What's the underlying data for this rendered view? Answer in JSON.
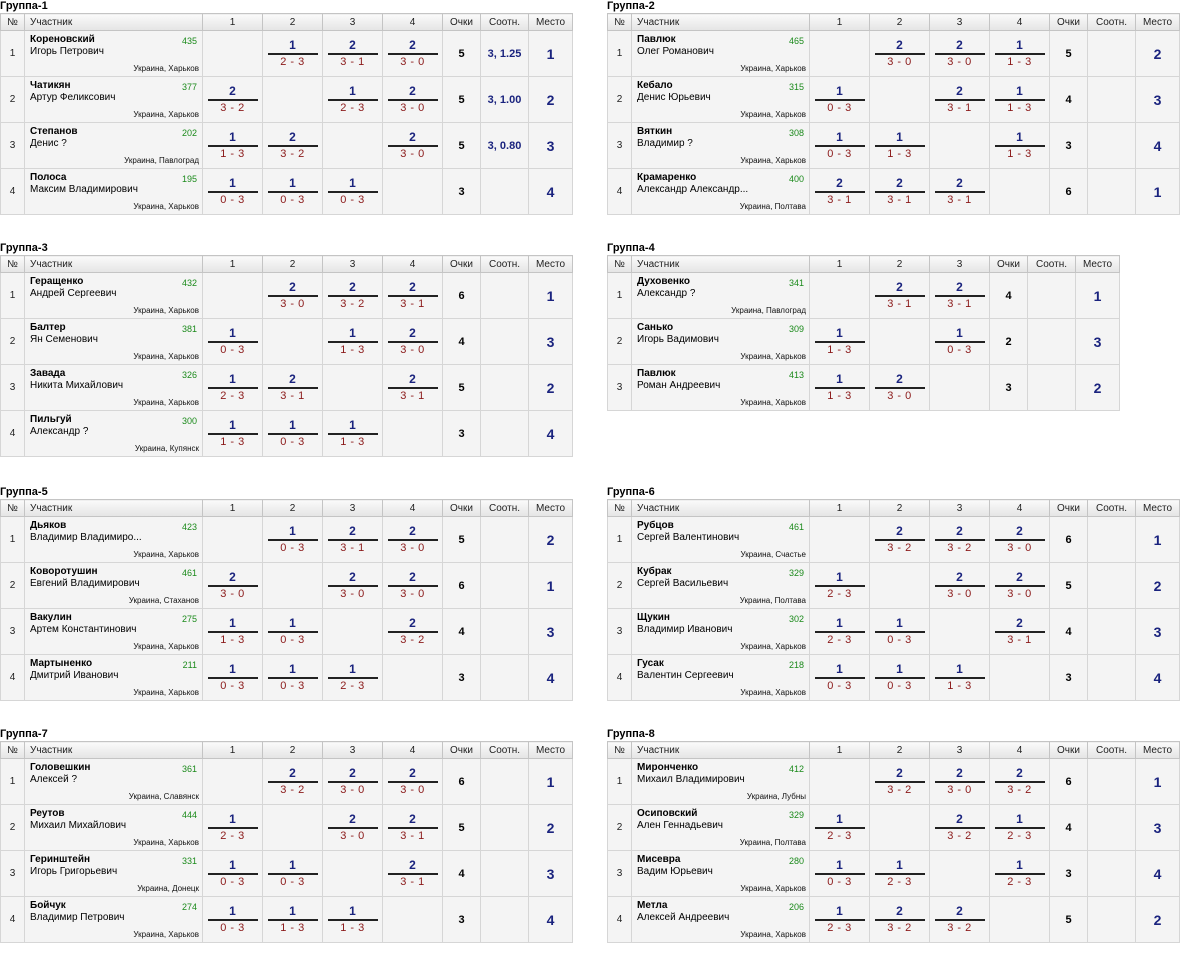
{
  "headers": {
    "num": "№",
    "player": "Участник",
    "points": "Очки",
    "ratio": "Соотн.",
    "place": "Место"
  },
  "groups": [
    {
      "title": "Группа-1",
      "players": [
        {
          "surname": "Кореновский",
          "first": "Игорь Петрович",
          "rating": "435",
          "location": "Украина, Харьков",
          "results": [
            null,
            {
              "p": "1",
              "s": "2 - 3"
            },
            {
              "p": "2",
              "s": "3 - 1"
            },
            {
              "p": "2",
              "s": "3 - 0"
            }
          ],
          "points": "5",
          "ratio": "3, 1.25",
          "place": "1"
        },
        {
          "surname": "Чатикян",
          "first": "Артур Феликсович",
          "rating": "377",
          "location": "Украина, Харьков",
          "results": [
            {
              "p": "2",
              "s": "3 - 2"
            },
            null,
            {
              "p": "1",
              "s": "2 - 3"
            },
            {
              "p": "2",
              "s": "3 - 0"
            }
          ],
          "points": "5",
          "ratio": "3, 1.00",
          "place": "2"
        },
        {
          "surname": "Степанов",
          "first": "Денис ?",
          "rating": "202",
          "location": "Украина, Павлоград",
          "results": [
            {
              "p": "1",
              "s": "1 - 3"
            },
            {
              "p": "2",
              "s": "3 - 2"
            },
            null,
            {
              "p": "2",
              "s": "3 - 0"
            }
          ],
          "points": "5",
          "ratio": "3, 0.80",
          "place": "3"
        },
        {
          "surname": "Полоса",
          "first": "Максим Владимирович",
          "rating": "195",
          "location": "Украина, Харьков",
          "results": [
            {
              "p": "1",
              "s": "0 - 3"
            },
            {
              "p": "1",
              "s": "0 - 3"
            },
            {
              "p": "1",
              "s": "0 - 3"
            },
            null
          ],
          "points": "3",
          "ratio": "",
          "place": "4"
        }
      ]
    },
    {
      "title": "Группа-2",
      "players": [
        {
          "surname": "Павлюк",
          "first": "Олег Романович",
          "rating": "465",
          "location": "Украина, Харьков",
          "results": [
            null,
            {
              "p": "2",
              "s": "3 - 0"
            },
            {
              "p": "2",
              "s": "3 - 0"
            },
            {
              "p": "1",
              "s": "1 - 3"
            }
          ],
          "points": "5",
          "ratio": "",
          "place": "2"
        },
        {
          "surname": "Кебало",
          "first": "Денис Юрьевич",
          "rating": "315",
          "location": "Украина, Харьков",
          "results": [
            {
              "p": "1",
              "s": "0 - 3"
            },
            null,
            {
              "p": "2",
              "s": "3 - 1"
            },
            {
              "p": "1",
              "s": "1 - 3"
            }
          ],
          "points": "4",
          "ratio": "",
          "place": "3"
        },
        {
          "surname": "Вяткин",
          "first": "Владимир ?",
          "rating": "308",
          "location": "Украина, Харьков",
          "results": [
            {
              "p": "1",
              "s": "0 - 3"
            },
            {
              "p": "1",
              "s": "1 - 3"
            },
            null,
            {
              "p": "1",
              "s": "1 - 3"
            }
          ],
          "points": "3",
          "ratio": "",
          "place": "4"
        },
        {
          "surname": "Крамаренко",
          "first": "Александр Александр...",
          "rating": "400",
          "location": "Украина, Полтава",
          "results": [
            {
              "p": "2",
              "s": "3 - 1"
            },
            {
              "p": "2",
              "s": "3 - 1"
            },
            {
              "p": "2",
              "s": "3 - 1"
            },
            null
          ],
          "points": "6",
          "ratio": "",
          "place": "1"
        }
      ]
    },
    {
      "title": "Группа-3",
      "players": [
        {
          "surname": "Геращенко",
          "first": "Андрей Сергеевич",
          "rating": "432",
          "location": "Украина, Харьков",
          "results": [
            null,
            {
              "p": "2",
              "s": "3 - 0"
            },
            {
              "p": "2",
              "s": "3 - 2"
            },
            {
              "p": "2",
              "s": "3 - 1"
            }
          ],
          "points": "6",
          "ratio": "",
          "place": "1"
        },
        {
          "surname": "Балтер",
          "first": "Ян Семенович",
          "rating": "381",
          "location": "Украина, Харьков",
          "results": [
            {
              "p": "1",
              "s": "0 - 3"
            },
            null,
            {
              "p": "1",
              "s": "1 - 3"
            },
            {
              "p": "2",
              "s": "3 - 0"
            }
          ],
          "points": "4",
          "ratio": "",
          "place": "3"
        },
        {
          "surname": "Завада",
          "first": "Никита Михайлович",
          "rating": "326",
          "location": "Украина, Харьков",
          "results": [
            {
              "p": "1",
              "s": "2 - 3"
            },
            {
              "p": "2",
              "s": "3 - 1"
            },
            null,
            {
              "p": "2",
              "s": "3 - 1"
            }
          ],
          "points": "5",
          "ratio": "",
          "place": "2"
        },
        {
          "surname": "Пильгуй",
          "first": "Александр ?",
          "rating": "300",
          "location": "Украина, Купянск",
          "results": [
            {
              "p": "1",
              "s": "1 - 3"
            },
            {
              "p": "1",
              "s": "0 - 3"
            },
            {
              "p": "1",
              "s": "1 - 3"
            },
            null
          ],
          "points": "3",
          "ratio": "",
          "place": "4"
        }
      ]
    },
    {
      "title": "Группа-4",
      "players": [
        {
          "surname": "Духовенко",
          "first": "Александр ?",
          "rating": "341",
          "location": "Украина, Павлоград",
          "results": [
            null,
            {
              "p": "2",
              "s": "3 - 1"
            },
            {
              "p": "2",
              "s": "3 - 1"
            }
          ],
          "points": "4",
          "ratio": "",
          "place": "1"
        },
        {
          "surname": "Санько",
          "first": "Игорь Вадимович",
          "rating": "309",
          "location": "Украина, Харьков",
          "results": [
            {
              "p": "1",
              "s": "1 - 3"
            },
            null,
            {
              "p": "1",
              "s": "0 - 3"
            }
          ],
          "points": "2",
          "ratio": "",
          "place": "3"
        },
        {
          "surname": "Павлюк",
          "first": "Роман Андреевич",
          "rating": "413",
          "location": "Украина, Харьков",
          "results": [
            {
              "p": "1",
              "s": "1 - 3"
            },
            {
              "p": "2",
              "s": "3 - 0"
            },
            null
          ],
          "points": "3",
          "ratio": "",
          "place": "2"
        }
      ]
    },
    {
      "title": "Группа-5",
      "players": [
        {
          "surname": "Дьяков",
          "first": "Владимир Владимиро...",
          "rating": "423",
          "location": "Украина, Харьков",
          "results": [
            null,
            {
              "p": "1",
              "s": "0 - 3"
            },
            {
              "p": "2",
              "s": "3 - 1"
            },
            {
              "p": "2",
              "s": "3 - 0"
            }
          ],
          "points": "5",
          "ratio": "",
          "place": "2"
        },
        {
          "surname": "Коворотушин",
          "first": "Евгений Владимирович",
          "rating": "461",
          "location": "Украина, Стаханов",
          "results": [
            {
              "p": "2",
              "s": "3 - 0"
            },
            null,
            {
              "p": "2",
              "s": "3 - 0"
            },
            {
              "p": "2",
              "s": "3 - 0"
            }
          ],
          "points": "6",
          "ratio": "",
          "place": "1"
        },
        {
          "surname": "Вакулин",
          "first": "Артем Константинович",
          "rating": "275",
          "location": "Украина, Харьков",
          "results": [
            {
              "p": "1",
              "s": "1 - 3"
            },
            {
              "p": "1",
              "s": "0 - 3"
            },
            null,
            {
              "p": "2",
              "s": "3 - 2"
            }
          ],
          "points": "4",
          "ratio": "",
          "place": "3"
        },
        {
          "surname": "Мартыненко",
          "first": "Дмитрий Иванович",
          "rating": "211",
          "location": "Украина, Харьков",
          "results": [
            {
              "p": "1",
              "s": "0 - 3"
            },
            {
              "p": "1",
              "s": "0 - 3"
            },
            {
              "p": "1",
              "s": "2 - 3"
            },
            null
          ],
          "points": "3",
          "ratio": "",
          "place": "4"
        }
      ]
    },
    {
      "title": "Группа-6",
      "players": [
        {
          "surname": "Рубцов",
          "first": "Сергей Валентинович",
          "rating": "461",
          "location": "Украина, Счастье",
          "results": [
            null,
            {
              "p": "2",
              "s": "3 - 2"
            },
            {
              "p": "2",
              "s": "3 - 2"
            },
            {
              "p": "2",
              "s": "3 - 0"
            }
          ],
          "points": "6",
          "ratio": "",
          "place": "1"
        },
        {
          "surname": "Кубрак",
          "first": "Сергей Васильевич",
          "rating": "329",
          "location": "Украина, Полтава",
          "results": [
            {
              "p": "1",
              "s": "2 - 3"
            },
            null,
            {
              "p": "2",
              "s": "3 - 0"
            },
            {
              "p": "2",
              "s": "3 - 0"
            }
          ],
          "points": "5",
          "ratio": "",
          "place": "2"
        },
        {
          "surname": "Щукин",
          "first": "Владимир Иванович",
          "rating": "302",
          "location": "Украина, Харьков",
          "results": [
            {
              "p": "1",
              "s": "2 - 3"
            },
            {
              "p": "1",
              "s": "0 - 3"
            },
            null,
            {
              "p": "2",
              "s": "3 - 1"
            }
          ],
          "points": "4",
          "ratio": "",
          "place": "3"
        },
        {
          "surname": "Гусак",
          "first": "Валентин Сергеевич",
          "rating": "218",
          "location": "Украина, Харьков",
          "results": [
            {
              "p": "1",
              "s": "0 - 3"
            },
            {
              "p": "1",
              "s": "0 - 3"
            },
            {
              "p": "1",
              "s": "1 - 3"
            },
            null
          ],
          "points": "3",
          "ratio": "",
          "place": "4"
        }
      ]
    },
    {
      "title": "Группа-7",
      "players": [
        {
          "surname": "Головешкин",
          "first": "Алексей ?",
          "rating": "361",
          "location": "Украина, Славянск",
          "results": [
            null,
            {
              "p": "2",
              "s": "3 - 2"
            },
            {
              "p": "2",
              "s": "3 - 0"
            },
            {
              "p": "2",
              "s": "3 - 0"
            }
          ],
          "points": "6",
          "ratio": "",
          "place": "1"
        },
        {
          "surname": "Реутов",
          "first": "Михаил Михайлович",
          "rating": "444",
          "location": "Украина, Харьков",
          "results": [
            {
              "p": "1",
              "s": "2 - 3"
            },
            null,
            {
              "p": "2",
              "s": "3 - 0"
            },
            {
              "p": "2",
              "s": "3 - 1"
            }
          ],
          "points": "5",
          "ratio": "",
          "place": "2"
        },
        {
          "surname": "Геринштейн",
          "first": "Игорь Григорьевич",
          "rating": "331",
          "location": "Украина, Донецк",
          "results": [
            {
              "p": "1",
              "s": "0 - 3"
            },
            {
              "p": "1",
              "s": "0 - 3"
            },
            null,
            {
              "p": "2",
              "s": "3 - 1"
            }
          ],
          "points": "4",
          "ratio": "",
          "place": "3"
        },
        {
          "surname": "Бойчук",
          "first": "Владимир Петрович",
          "rating": "274",
          "location": "Украина, Харьков",
          "results": [
            {
              "p": "1",
              "s": "0 - 3"
            },
            {
              "p": "1",
              "s": "1 - 3"
            },
            {
              "p": "1",
              "s": "1 - 3"
            },
            null
          ],
          "points": "3",
          "ratio": "",
          "place": "4"
        }
      ]
    },
    {
      "title": "Группа-8",
      "players": [
        {
          "surname": "Миронченко",
          "first": "Михаил Владимирович",
          "rating": "412",
          "location": "Украина, Лубны",
          "results": [
            null,
            {
              "p": "2",
              "s": "3 - 2"
            },
            {
              "p": "2",
              "s": "3 - 0"
            },
            {
              "p": "2",
              "s": "3 - 2"
            }
          ],
          "points": "6",
          "ratio": "",
          "place": "1"
        },
        {
          "surname": "Осиповский",
          "first": "Ален Геннадьевич",
          "rating": "329",
          "location": "Украина, Полтава",
          "results": [
            {
              "p": "1",
              "s": "2 - 3"
            },
            null,
            {
              "p": "2",
              "s": "3 - 2"
            },
            {
              "p": "1",
              "s": "2 - 3"
            }
          ],
          "points": "4",
          "ratio": "",
          "place": "3"
        },
        {
          "surname": "Мисевра",
          "first": "Вадим Юрьевич",
          "rating": "280",
          "location": "Украина, Харьков",
          "results": [
            {
              "p": "1",
              "s": "0 - 3"
            },
            {
              "p": "1",
              "s": "2 - 3"
            },
            null,
            {
              "p": "1",
              "s": "2 - 3"
            }
          ],
          "points": "3",
          "ratio": "",
          "place": "4"
        },
        {
          "surname": "Метла",
          "first": "Алексей Андреевич",
          "rating": "206",
          "location": "Украина, Харьков",
          "results": [
            {
              "p": "1",
              "s": "2 - 3"
            },
            {
              "p": "2",
              "s": "3 - 2"
            },
            {
              "p": "2",
              "s": "3 - 2"
            },
            null
          ],
          "points": "5",
          "ratio": "",
          "place": "2"
        }
      ]
    }
  ]
}
